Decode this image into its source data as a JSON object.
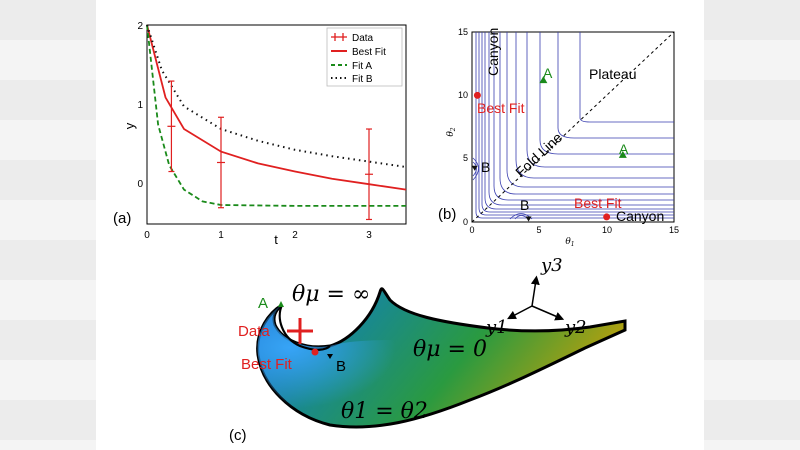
{
  "panel_a": {
    "label": "(a)",
    "xlabel": "t",
    "ylabel": "y",
    "xticks": [
      "0",
      "1",
      "2",
      "3"
    ],
    "yticks": [
      "0",
      "1",
      "2"
    ],
    "legend": [
      "Data",
      "Best Fit",
      "Fit A",
      "Fit B"
    ]
  },
  "panel_b": {
    "label": "(b)",
    "xlabel": "θ",
    "xlabel_sub": "1",
    "ylabel": "θ",
    "ylabel_sub": "2",
    "xticks": [
      "0",
      "5",
      "10",
      "15"
    ],
    "yticks": [
      "0",
      "5",
      "10",
      "15"
    ],
    "annotations": {
      "canyon_top": "Canyon",
      "canyon_bottom": "Canyon",
      "plateau": "Plateau",
      "fold_line": "Fold Line",
      "best_fit_top": "Best Fit",
      "best_fit_bottom": "Best Fit",
      "a_top": "A",
      "a_right": "A",
      "b_left": "B",
      "b_bottom": "B"
    }
  },
  "panel_c": {
    "label": "(c)",
    "theta_mu_inf": "θμ = ∞",
    "theta_mu_zero": "θμ = 0",
    "theta_eq": "θ1 = θ2",
    "a": "A",
    "data": "Data",
    "best_fit": "Best Fit",
    "b": "B",
    "axes": [
      "y1",
      "y2",
      "y3"
    ]
  },
  "colors": {
    "data": "#e02020",
    "best_fit": "#e02020",
    "fit_a": "#1a8a1a",
    "fit_b": "#111111",
    "contour": "#3a3fb0",
    "marker_a": "#1a8a1a",
    "marker_b": "#111111",
    "manifold_edge": "#000000"
  },
  "chart_data": [
    {
      "type": "line",
      "xlim": [
        0,
        3.5
      ],
      "ylim": [
        -0.2,
        2
      ],
      "xlabel": "t",
      "ylabel": "y",
      "legend_position": "top-right",
      "series": [
        {
          "name": "Data",
          "x": [
            0.33,
            1.0,
            3.0
          ],
          "y": [
            0.88,
            0.48,
            0.35
          ],
          "yerr": [
            0.5,
            0.5,
            0.5
          ]
        },
        {
          "name": "Best Fit",
          "x": [
            0,
            0.25,
            0.5,
            1,
            1.5,
            2,
            2.5,
            3,
            3.5
          ],
          "y": [
            2.0,
            1.2,
            0.85,
            0.6,
            0.47,
            0.38,
            0.3,
            0.24,
            0.18
          ]
        },
        {
          "name": "Fit A",
          "x": [
            0,
            0.15,
            0.3,
            0.5,
            0.75,
            1,
            2,
            3,
            3.5
          ],
          "y": [
            2.0,
            0.9,
            0.45,
            0.18,
            0.05,
            0.01,
            0.0,
            0.0,
            0.0
          ]
        },
        {
          "name": "Fit B",
          "x": [
            0,
            0.2,
            0.5,
            1,
            1.5,
            2,
            2.5,
            3,
            3.5
          ],
          "y": [
            2.0,
            1.5,
            1.1,
            0.85,
            0.72,
            0.62,
            0.55,
            0.49,
            0.43
          ]
        }
      ]
    },
    {
      "type": "scatter",
      "xlim": [
        0,
        15
      ],
      "ylim": [
        0,
        15
      ],
      "points": [
        {
          "label": "Best Fit",
          "x": 0.4,
          "y": 10.0
        },
        {
          "label": "Best Fit",
          "x": 10.0,
          "y": 0.4
        },
        {
          "label": "A",
          "x": 5.3,
          "y": 11.2
        },
        {
          "label": "A",
          "x": 11.2,
          "y": 5.3
        },
        {
          "label": "B",
          "x": 0.2,
          "y": 4.2
        },
        {
          "label": "B",
          "x": 4.2,
          "y": 0.2
        }
      ]
    }
  ]
}
